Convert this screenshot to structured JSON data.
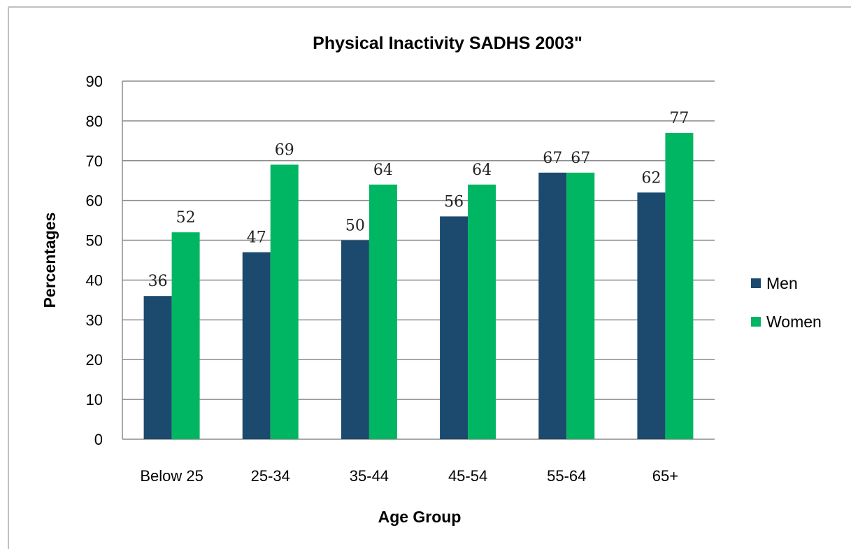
{
  "chart_data": {
    "type": "bar",
    "title": "Physical Inactivity SADHS 2003\"",
    "xlabel": "Age Group",
    "ylabel": "Percentages",
    "categories": [
      "Below 25",
      "25-34",
      "35-44",
      "45-54",
      "55-64",
      "65+"
    ],
    "series": [
      {
        "name": "Men",
        "values": [
          36,
          47,
          50,
          56,
          67,
          62
        ],
        "color": "#1b4a6e"
      },
      {
        "name": "Women",
        "values": [
          52,
          69,
          64,
          64,
          67,
          77
        ],
        "color": "#00b663"
      }
    ],
    "ylim": [
      0,
      90
    ],
    "yticks": [
      0,
      10,
      20,
      30,
      40,
      50,
      60,
      70,
      80,
      90
    ],
    "grid": true,
    "legend_position": "right",
    "data_labels": true
  },
  "colors": {
    "grid": "#8c8c8c",
    "frame": "#bfbfbf"
  }
}
